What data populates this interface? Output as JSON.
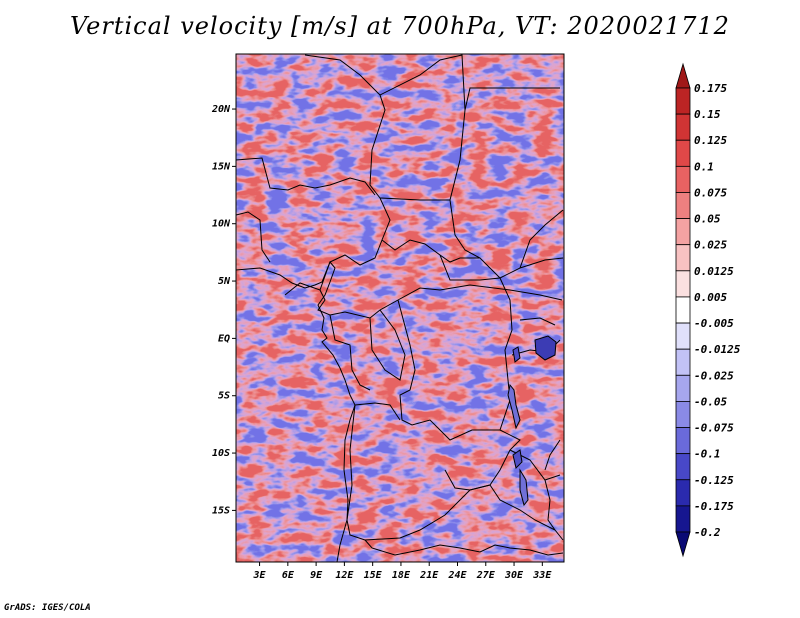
{
  "title": "Vertical velocity [m/s] at 700hPa, VT: 2020021712",
  "credit": "GrADS: IGES/COLA",
  "map": {
    "lat_labels": [
      "20N",
      "15N",
      "10N",
      "5N",
      "EQ",
      "5S",
      "10S",
      "15S"
    ],
    "lat_values": [
      20,
      15,
      10,
      5,
      0,
      -5,
      -10,
      -15
    ],
    "lon_labels": [
      "3E",
      "6E",
      "9E",
      "12E",
      "15E",
      "18E",
      "21E",
      "24E",
      "27E",
      "30E",
      "33E"
    ],
    "lon_values": [
      3,
      6,
      9,
      12,
      15,
      18,
      21,
      24,
      27,
      30,
      33
    ],
    "lat_range": [
      -19.5,
      24.8
    ],
    "lon_range": [
      0.5,
      35.3
    ]
  },
  "colorbar": {
    "labels": [
      "0.175",
      "0.15",
      "0.125",
      "0.1",
      "0.075",
      "0.05",
      "0.025",
      "0.0125",
      "0.005",
      "-0.005",
      "-0.0125",
      "-0.025",
      "-0.05",
      "-0.075",
      "-0.1",
      "-0.125",
      "-0.175",
      "-0.2"
    ],
    "colors": [
      "#a01818",
      "#bc2424",
      "#d03434",
      "#e04848",
      "#e86262",
      "#ee8080",
      "#f4a2a2",
      "#f8c2c2",
      "#fbe0e0",
      "#ffffff",
      "#e0e0fb",
      "#c2c2f6",
      "#a6a6ee",
      "#8a8ae6",
      "#6a6ada",
      "#4848c8",
      "#2a2aae",
      "#161690",
      "#0a0a74"
    ]
  }
}
